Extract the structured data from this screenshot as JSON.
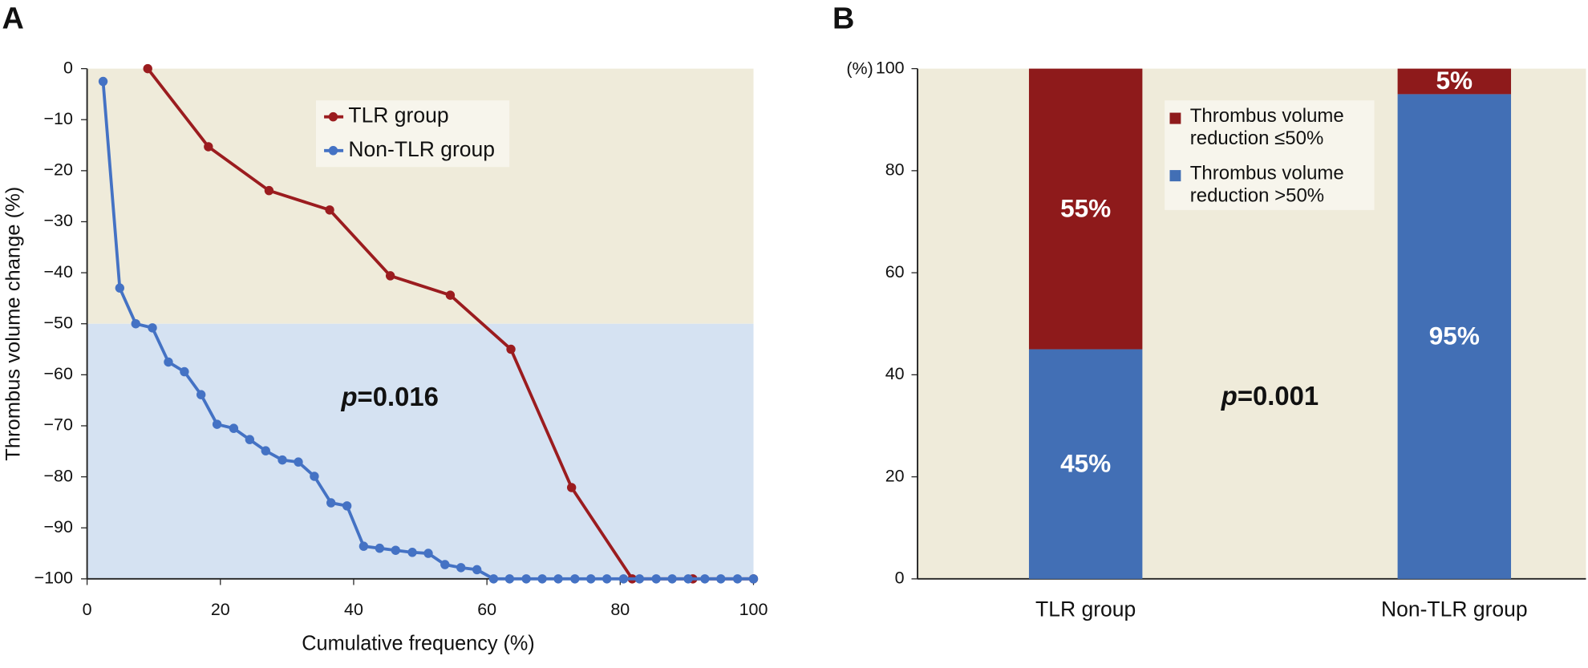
{
  "chart_data": [
    {
      "type": "line",
      "panel_label": "A",
      "xlabel": "Cumulative frequency (%)",
      "ylabel": "Thrombus volume change (%)",
      "xlim": [
        0,
        100
      ],
      "xticks": [
        0,
        20,
        40,
        60,
        80,
        100
      ],
      "ylim": [
        -100,
        0
      ],
      "yticks": [
        0,
        {
          "value": -10,
          "label": "−10"
        },
        {
          "value": -20,
          "label": "−20"
        },
        {
          "value": -30,
          "label": "−30"
        },
        {
          "value": -40,
          "label": "−40"
        },
        {
          "value": -50,
          "label": "−50"
        },
        {
          "value": -60,
          "label": "−60"
        },
        {
          "value": -70,
          "label": "−70"
        },
        {
          "value": -80,
          "label": "−80"
        },
        {
          "value": -90,
          "label": "−90"
        },
        {
          "value": -100,
          "label": "−100"
        }
      ],
      "regions": [
        {
          "from": 0,
          "to": -50,
          "color": "#efebda"
        },
        {
          "from": -50,
          "to": -100,
          "color": "#d5e2f2"
        }
      ],
      "annotation": {
        "italic": "p",
        "text": "=0.016"
      },
      "series": [
        {
          "name": "TLR group",
          "color": "#9b1c1f",
          "x": [
            9.1,
            18.2,
            27.3,
            36.4,
            45.5,
            54.5,
            63.6,
            72.7,
            81.8,
            90.9,
            100
          ],
          "values": [
            0,
            -15.3,
            -23.9,
            -27.7,
            -40.6,
            -44.4,
            -55.0,
            -82.1,
            -100,
            -100,
            -100
          ]
        },
        {
          "name": "Non-TLR group",
          "color": "#4472c4",
          "x": [
            2.4,
            4.9,
            7.3,
            9.8,
            12.2,
            14.6,
            17.1,
            19.5,
            22.0,
            24.4,
            26.8,
            29.3,
            31.7,
            34.1,
            36.6,
            39.0,
            41.5,
            43.9,
            46.3,
            48.8,
            51.2,
            53.7,
            56.1,
            58.5,
            61.0,
            63.4,
            65.9,
            68.3,
            70.7,
            73.2,
            75.6,
            78.0,
            80.5,
            82.9,
            85.4,
            87.8,
            90.2,
            92.7,
            95.1,
            97.6,
            100
          ],
          "values": [
            -2.5,
            -43.0,
            -50.0,
            -50.8,
            -57.5,
            -59.4,
            -63.9,
            -69.7,
            -70.5,
            -72.7,
            -74.9,
            -76.7,
            -77.1,
            -79.9,
            -85.1,
            -85.7,
            -93.6,
            -94.0,
            -94.4,
            -94.8,
            -95.0,
            -97.2,
            -97.8,
            -98.2,
            -100,
            -100,
            -100,
            -100,
            -100,
            -100,
            -100,
            -100,
            -100,
            -100,
            -100,
            -100,
            -100,
            -100,
            -100,
            -100,
            -100
          ]
        }
      ]
    },
    {
      "type": "stacked_bar",
      "panel_label": "B",
      "ylabel": "(%)",
      "categories": [
        "TLR group",
        "Non-TLR group"
      ],
      "ylim": [
        0,
        100
      ],
      "yticks": [
        0,
        20,
        40,
        60,
        80,
        100
      ],
      "background": "#efebda",
      "annotation": {
        "italic": "p",
        "text": "=0.001"
      },
      "series": [
        {
          "name": "Thrombus volume reduction ≤50%",
          "color": "#8e1a1b",
          "values": [
            55,
            5
          ],
          "value_labels": [
            "55%",
            "5%"
          ]
        },
        {
          "name": "Thrombus volume reduction >50%",
          "color": "#426fb5",
          "values": [
            45,
            95
          ],
          "value_labels": [
            "45%",
            "95%"
          ]
        }
      ]
    }
  ]
}
